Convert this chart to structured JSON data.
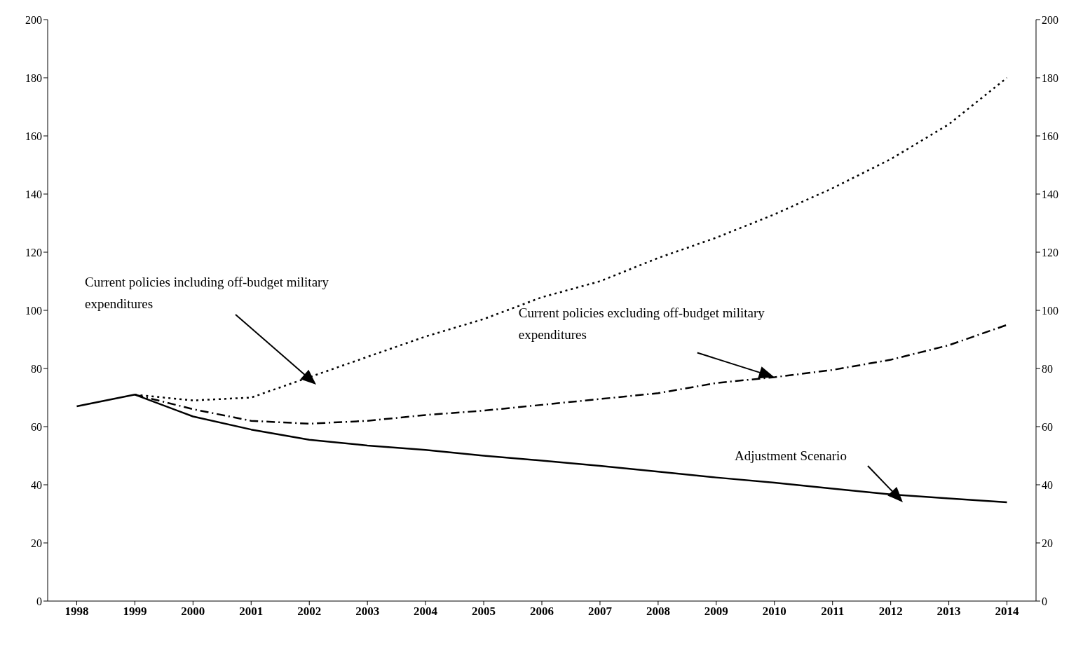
{
  "chart_data": {
    "type": "line",
    "categories": [
      "1998",
      "1999",
      "2000",
      "2001",
      "2002",
      "2003",
      "2004",
      "2005",
      "2006",
      "2007",
      "2008",
      "2009",
      "2010",
      "2011",
      "2012",
      "2013",
      "2014"
    ],
    "series": [
      {
        "color": "#000000",
        "line_style": "solid",
        "values": [
          67,
          71,
          63.5,
          59,
          55.5,
          53.5,
          52,
          50,
          48.3,
          46.5,
          44.5,
          42.5,
          40.7,
          38.7,
          36.7,
          35.3,
          34
        ]
      },
      {
        "color": "#000000",
        "line_style": "dotted",
        "values": [
          null,
          71,
          69,
          70,
          77,
          84,
          91,
          97,
          104.5,
          110,
          118,
          125,
          133,
          142,
          152,
          164,
          180
        ]
      },
      {
        "color": "#000000",
        "line_style": "dashdot",
        "values": [
          null,
          71,
          66,
          62,
          61,
          62,
          64,
          65.5,
          67.5,
          69.5,
          71.5,
          75,
          77,
          79.5,
          83,
          88,
          95
        ]
      }
    ],
    "ylim": [
      0,
      200
    ],
    "yticks": [
      0,
      20,
      40,
      60,
      80,
      100,
      120,
      140,
      160,
      180,
      200
    ],
    "y2lim": [
      0,
      200
    ],
    "y2ticks": [
      0,
      20,
      40,
      60,
      80,
      100,
      120,
      140,
      160,
      180,
      200
    ],
    "annotations": [
      "Current policies including off-budget military expenditures",
      {
        "text": "Current policies excluding off-budget military expenditures",
        "x": "2010",
        "y": 77
      },
      "Adjustment Scenario"
    ],
    "marker": "none"
  }
}
